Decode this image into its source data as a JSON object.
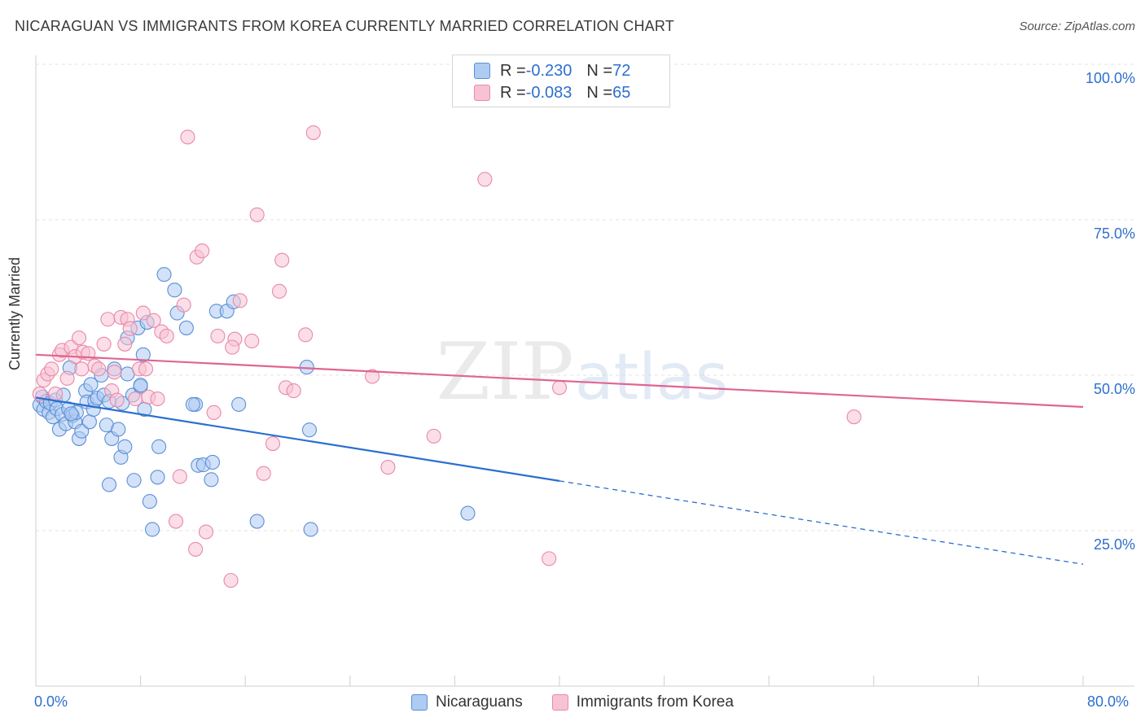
{
  "title": "NICARAGUAN VS IMMIGRANTS FROM KOREA CURRENTLY MARRIED CORRELATION CHART",
  "source": "Source: ZipAtlas.com",
  "watermark": {
    "zip": "ZIP",
    "atlas": "atlas"
  },
  "legend_top": {
    "series1": {
      "r_label": "R = ",
      "r_value": "-0.230",
      "n_label": "N = ",
      "n_value": "72"
    },
    "series2": {
      "r_label": "R = ",
      "r_value": "-0.083",
      "n_label": "N = ",
      "n_value": "65"
    }
  },
  "legend_bottom": {
    "series1": "Nicaraguans",
    "series2": "Immigrants from Korea"
  },
  "colors": {
    "blue_fill": "#aecbf2",
    "blue_stroke": "#5b8fd6",
    "blue_line": "#2a6fd0",
    "pink_fill": "#f7c3d3",
    "pink_stroke": "#e889a8",
    "pink_line": "#e06592",
    "tick_text": "#2e6fcc"
  },
  "chart_data": {
    "type": "scatter",
    "title": "NICARAGUAN VS IMMIGRANTS FROM KOREA CURRENTLY MARRIED CORRELATION CHART",
    "xlabel": "",
    "ylabel": "Currently Married",
    "xlim": [
      0,
      80
    ],
    "ylim": [
      0,
      105
    ],
    "x_tick_labels": {
      "min": "0.0%",
      "max": "80.0%"
    },
    "y_ticks": [
      {
        "value": 25,
        "label": "25.0%"
      },
      {
        "value": 50,
        "label": "50.0%"
      },
      {
        "value": 75,
        "label": "75.0%"
      },
      {
        "value": 100,
        "label": "100.0%"
      }
    ],
    "series": [
      {
        "name": "Nicaraguans",
        "R": -0.23,
        "N": 72,
        "trend": {
          "x0": 0,
          "y0": 46.4,
          "x1": 40,
          "y1": 33,
          "dash_to_x": 80,
          "dash_to_y": 19.6
        },
        "points": [
          [
            0.3,
            45.2
          ],
          [
            0.5,
            46.5
          ],
          [
            0.6,
            44.5
          ],
          [
            0.8,
            45.8
          ],
          [
            1.0,
            44.0
          ],
          [
            1.1,
            45.5
          ],
          [
            1.3,
            43.3
          ],
          [
            1.5,
            46.0
          ],
          [
            1.6,
            44.6
          ],
          [
            1.8,
            41.3
          ],
          [
            2.0,
            43.7
          ],
          [
            2.1,
            46.8
          ],
          [
            2.3,
            42.2
          ],
          [
            2.5,
            44.6
          ],
          [
            2.6,
            51.2
          ],
          [
            2.8,
            43.5
          ],
          [
            3.0,
            42.5
          ],
          [
            3.1,
            44.0
          ],
          [
            3.3,
            39.8
          ],
          [
            3.5,
            41.0
          ],
          [
            3.8,
            47.5
          ],
          [
            3.9,
            45.7
          ],
          [
            4.1,
            42.5
          ],
          [
            4.2,
            48.5
          ],
          [
            4.4,
            44.5
          ],
          [
            4.5,
            45.9
          ],
          [
            4.7,
            46.3
          ],
          [
            5.0,
            50.0
          ],
          [
            5.2,
            46.8
          ],
          [
            5.4,
            42.0
          ],
          [
            5.6,
            45.8
          ],
          [
            5.8,
            39.8
          ],
          [
            6.0,
            51.0
          ],
          [
            6.3,
            41.3
          ],
          [
            6.5,
            36.8
          ],
          [
            6.6,
            45.5
          ],
          [
            6.8,
            38.5
          ],
          [
            7.0,
            50.2
          ],
          [
            7.4,
            46.8
          ],
          [
            7.8,
            57.6
          ],
          [
            8.0,
            48.2
          ],
          [
            8.2,
            53.3
          ],
          [
            8.3,
            44.5
          ],
          [
            8.5,
            58.5
          ],
          [
            9.4,
            38.5
          ],
          [
            9.8,
            66.2
          ],
          [
            10.6,
            63.7
          ],
          [
            10.8,
            60.0
          ],
          [
            11.5,
            57.6
          ],
          [
            12.2,
            45.3
          ],
          [
            12.4,
            35.5
          ],
          [
            12.8,
            35.6
          ],
          [
            13.4,
            33.2
          ],
          [
            13.5,
            36.0
          ],
          [
            13.8,
            60.3
          ],
          [
            14.6,
            60.3
          ],
          [
            15.1,
            61.8
          ],
          [
            15.5,
            45.3
          ],
          [
            7.0,
            56.0
          ],
          [
            8.0,
            48.4
          ],
          [
            5.6,
            32.4
          ],
          [
            7.5,
            33.1
          ],
          [
            9.3,
            33.6
          ],
          [
            8.7,
            29.7
          ],
          [
            8.9,
            25.2
          ],
          [
            16.9,
            26.5
          ],
          [
            20.7,
            51.3
          ],
          [
            20.9,
            41.2
          ],
          [
            21.0,
            25.2
          ],
          [
            33.0,
            27.8
          ],
          [
            12.0,
            45.3
          ],
          [
            2.7,
            43.8
          ]
        ]
      },
      {
        "name": "Immigrants from Korea",
        "R": -0.083,
        "N": 65,
        "trend": {
          "x0": 0,
          "y0": 53.3,
          "x1": 80,
          "y1": 44.9
        },
        "points": [
          [
            0.3,
            47.0
          ],
          [
            0.6,
            49.2
          ],
          [
            0.9,
            50.2
          ],
          [
            1.2,
            51.0
          ],
          [
            1.5,
            47.0
          ],
          [
            1.8,
            53.3
          ],
          [
            2.0,
            54.0
          ],
          [
            2.4,
            49.5
          ],
          [
            2.7,
            54.5
          ],
          [
            3.0,
            53.0
          ],
          [
            3.3,
            56.0
          ],
          [
            3.6,
            53.7
          ],
          [
            4.0,
            53.5
          ],
          [
            4.5,
            51.5
          ],
          [
            4.8,
            51.0
          ],
          [
            5.2,
            55.0
          ],
          [
            5.5,
            59.0
          ],
          [
            5.8,
            47.5
          ],
          [
            6.2,
            46.0
          ],
          [
            6.5,
            59.3
          ],
          [
            6.8,
            55.0
          ],
          [
            7.0,
            59.0
          ],
          [
            7.2,
            57.5
          ],
          [
            7.6,
            46.2
          ],
          [
            7.9,
            51.0
          ],
          [
            8.2,
            60.0
          ],
          [
            8.6,
            46.5
          ],
          [
            9.0,
            58.8
          ],
          [
            9.3,
            46.2
          ],
          [
            9.6,
            57.0
          ],
          [
            10.0,
            56.3
          ],
          [
            11.0,
            33.7
          ],
          [
            11.3,
            61.3
          ],
          [
            11.6,
            88.3
          ],
          [
            12.3,
            69.0
          ],
          [
            12.7,
            70.0
          ],
          [
            13.0,
            24.8
          ],
          [
            13.6,
            44.0
          ],
          [
            13.9,
            56.3
          ],
          [
            14.9,
            17.0
          ],
          [
            15.2,
            55.8
          ],
          [
            15.6,
            62.0
          ],
          [
            16.5,
            55.5
          ],
          [
            16.9,
            75.8
          ],
          [
            17.4,
            34.2
          ],
          [
            18.1,
            39.0
          ],
          [
            18.6,
            63.5
          ],
          [
            18.8,
            68.5
          ],
          [
            19.1,
            48.0
          ],
          [
            19.7,
            47.5
          ],
          [
            20.6,
            56.5
          ],
          [
            21.2,
            89.0
          ],
          [
            25.7,
            49.8
          ],
          [
            26.9,
            35.2
          ],
          [
            30.4,
            40.2
          ],
          [
            34.3,
            81.5
          ],
          [
            40.0,
            48.0
          ],
          [
            39.2,
            20.5
          ],
          [
            62.5,
            43.3
          ],
          [
            12.2,
            22.0
          ],
          [
            10.7,
            26.5
          ],
          [
            15.0,
            54.5
          ],
          [
            6.0,
            50.5
          ],
          [
            3.5,
            51.0
          ],
          [
            8.4,
            51.0
          ]
        ]
      }
    ]
  }
}
